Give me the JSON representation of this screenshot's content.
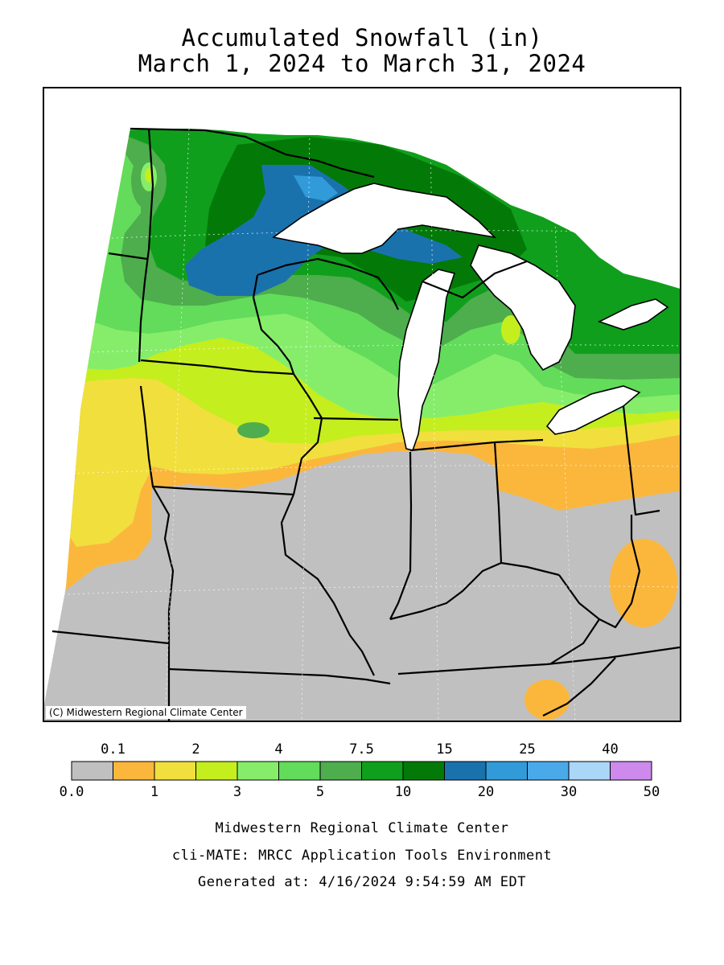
{
  "title": "Accumulated Snowfall (in)",
  "subtitle": "March 1, 2024 to March 31, 2024",
  "map": {
    "copyright": "(C) Midwestern Regional Climate Center",
    "colors": {
      "no_snow": "#c0c0c0",
      "snow_0_1": "#fbb73c",
      "snow_1_2": "#f1df3e",
      "snow_2_3": "#c5ee1e",
      "snow_3_4": "#86ed6b",
      "snow_4_5": "#62dc5a",
      "snow_5_7_5": "#4ead4d",
      "snow_7_5_10": "#109f1c",
      "snow_10_15": "#037a07",
      "snow_15_20": "#1a72ad",
      "snow_20_25": "#319bd9",
      "water": "#ffffff",
      "boundary": "#000000"
    }
  },
  "legend": {
    "top_labels": [
      "0.1",
      "2",
      "4",
      "7.5",
      "15",
      "25",
      "40"
    ],
    "bottom_labels": [
      "0.0",
      "1",
      "3",
      "5",
      "10",
      "20",
      "30",
      "50"
    ],
    "bins": [
      {
        "color": "#c0c0c0"
      },
      {
        "color": "#fbb73c"
      },
      {
        "color": "#f1df3e"
      },
      {
        "color": "#c5ee1e"
      },
      {
        "color": "#86ed6b"
      },
      {
        "color": "#62dc5a"
      },
      {
        "color": "#4ead4d"
      },
      {
        "color": "#109f1c"
      },
      {
        "color": "#037a07"
      },
      {
        "color": "#1a72ad"
      },
      {
        "color": "#319bd9"
      },
      {
        "color": "#4aa9e9"
      },
      {
        "color": "#aad6f7"
      },
      {
        "color": "#cd8aec"
      }
    ]
  },
  "footer": {
    "line1": "Midwestern Regional Climate Center",
    "line2": "cli-MATE: MRCC Application Tools Environment",
    "line3": "Generated at: 4/16/2024 9:54:59 AM EDT"
  }
}
